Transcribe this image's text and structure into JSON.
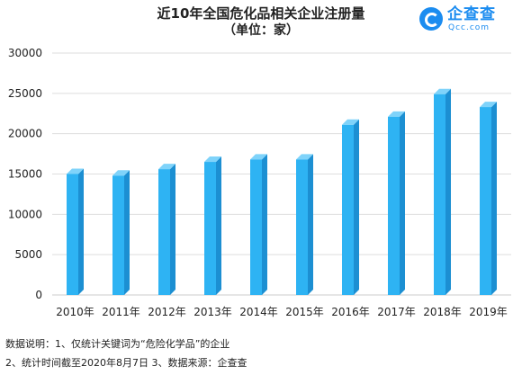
{
  "header": {
    "title": "近10年全国危化品相关企业注册量",
    "subtitle": "（单位：家）"
  },
  "logo": {
    "name": "企查查",
    "domain": "Qcc.com",
    "icon": "qcc-logo-icon",
    "color": "#1b8cf0"
  },
  "chart_data": {
    "type": "bar",
    "categories": [
      "2010年",
      "2011年",
      "2012年",
      "2013年",
      "2014年",
      "2015年",
      "2016年",
      "2017年",
      "2018年",
      "2019年"
    ],
    "values": [
      15000,
      14800,
      15600,
      16500,
      16800,
      16800,
      21100,
      22100,
      24900,
      23300
    ],
    "ylim": [
      0,
      30000
    ],
    "yticks": [
      0,
      5000,
      10000,
      15000,
      20000,
      25000,
      30000
    ],
    "grid": true,
    "legend": "none",
    "bar_style": "3d",
    "colors": {
      "front": "#2eb3f3",
      "side": "#1c8fd2",
      "top": "#7fd3fa",
      "grid": "#dedede"
    }
  },
  "notes": {
    "line1": "数据说明：1、仅统计关键词为“危险化学品”的企业",
    "line2": "2、统计时间截至2020年8月7日  3、数据来源：企查查"
  }
}
